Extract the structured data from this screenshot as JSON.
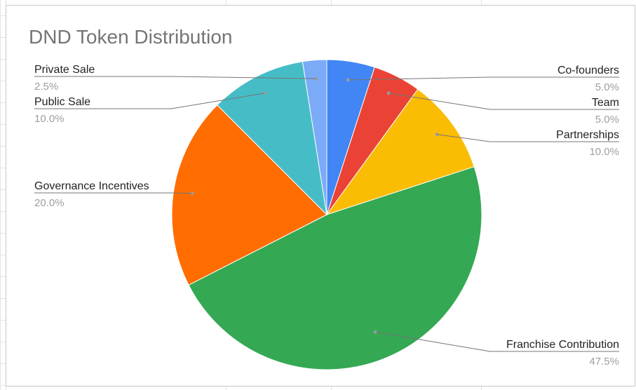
{
  "chart_data": {
    "type": "pie",
    "title": "DND Token Distribution",
    "categories": [
      "Co-founders",
      "Team",
      "Partnerships",
      "Franchise Contribution",
      "Governance Incentives",
      "Public Sale",
      "Private Sale"
    ],
    "values": [
      5.0,
      5.0,
      10.0,
      47.5,
      20.0,
      10.0,
      2.5
    ],
    "percent_labels": [
      "5.0%",
      "5.0%",
      "10.0%",
      "47.5%",
      "20.0%",
      "10.0%",
      "2.5%"
    ],
    "colors": [
      "#4285f4",
      "#ea4335",
      "#fbbc04",
      "#34a853",
      "#ff6d01",
      "#46bdc6",
      "#7baaf7"
    ],
    "legend": "labels-with-leader-lines"
  }
}
